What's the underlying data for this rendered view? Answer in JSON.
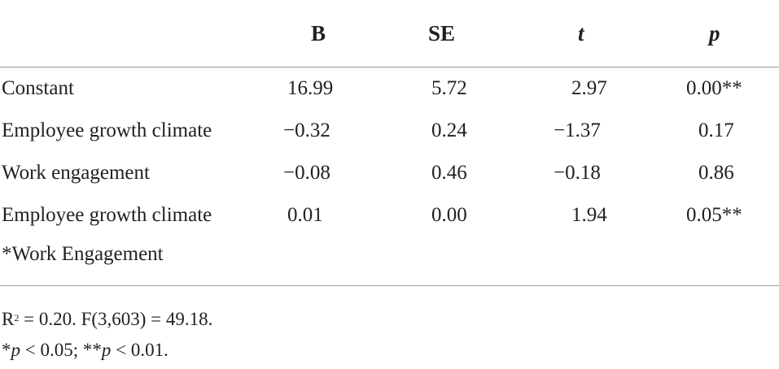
{
  "table": {
    "headers": [
      "",
      "B",
      "SE",
      "t",
      "p"
    ],
    "rows": [
      {
        "label": "Constant",
        "b": "16.99",
        "se": "5.72",
        "t": "2.97",
        "p": "0.00**"
      },
      {
        "label": "Employee growth climate",
        "b": "−0.32",
        "se": "0.24",
        "t": "−1.37",
        "p": "0.17"
      },
      {
        "label": "Work engagement",
        "b": "−0.08",
        "se": "0.46",
        "t": "−0.18",
        "p": "0.86"
      },
      {
        "label": "Employee growth climate",
        "b": "0.01",
        "se": "0.00",
        "t": "1.94",
        "p": "0.05**"
      }
    ],
    "row4_label_cont": "*Work Engagement"
  },
  "notes": {
    "r_prefix": "R",
    "r_sup": "2",
    "r_rest": " = 0.20. F(3,603) = 49.18.",
    "sig_star1": "*",
    "sig_p1": "p",
    "sig_rest1": " < 0.05; **",
    "sig_p2": "p",
    "sig_rest2": " < 0.01."
  }
}
